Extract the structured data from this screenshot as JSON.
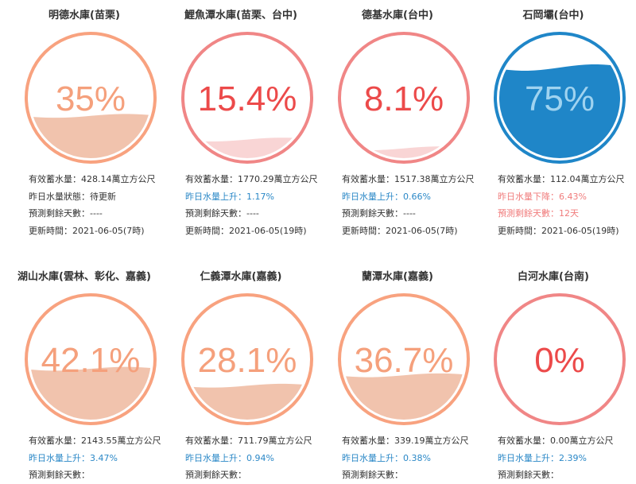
{
  "colors": {
    "orange_ring": "#f8a27f",
    "orange_text": "#f5a07c",
    "orange_water": "#f1c3ad",
    "red_ring": "#f08686",
    "red_text": "#ec4a4a",
    "red_water": "#f9d5d5",
    "blue_fill": "#1f86c8",
    "blue_ring": "#1f86c8",
    "blue_text": "#9fd3f0",
    "rise_text": "#2b88c7",
    "fall_text": "#f07c7c"
  },
  "reservoirs": [
    {
      "name": "明德水庫(苗栗)",
      "percent_label": "35%",
      "level": 0.35,
      "theme": "orange",
      "lines": [
        {
          "text": "有效蓄水量：428.14萬立方公尺",
          "kind": "normal"
        },
        {
          "text": "昨日水量狀態：待更新",
          "kind": "normal"
        },
        {
          "text": "預測剩餘天數：----",
          "kind": "normal"
        },
        {
          "text": "更新時間：2021-06-05(7時)",
          "kind": "normal"
        }
      ]
    },
    {
      "name": "鯉魚潭水庫(苗栗、台中)",
      "percent_label": "15.4%",
      "level": 0.154,
      "theme": "red",
      "lines": [
        {
          "text": "有效蓄水量：1770.29萬立方公尺",
          "kind": "normal"
        },
        {
          "text": "昨日水量上升：1.17%",
          "kind": "up"
        },
        {
          "text": "預測剩餘天數：----",
          "kind": "normal"
        },
        {
          "text": "更新時間：2021-06-05(19時)",
          "kind": "normal"
        }
      ]
    },
    {
      "name": "德基水庫(台中)",
      "percent_label": "8.1%",
      "level": 0.081,
      "theme": "red",
      "lines": [
        {
          "text": "有效蓄水量：1517.38萬立方公尺",
          "kind": "normal"
        },
        {
          "text": "昨日水量上升：0.66%",
          "kind": "up"
        },
        {
          "text": "預測剩餘天數：----",
          "kind": "normal"
        },
        {
          "text": "更新時間：2021-06-05(7時)",
          "kind": "normal"
        }
      ]
    },
    {
      "name": "石岡壩(台中)",
      "percent_label": "75%",
      "level": 0.75,
      "theme": "blue",
      "lines": [
        {
          "text": "有效蓄水量：112.04萬立方公尺",
          "kind": "normal"
        },
        {
          "text": "昨日水量下降：6.43%",
          "kind": "down"
        },
        {
          "text": "預測剩餘天數：12天",
          "kind": "down"
        },
        {
          "text": "更新時間：2021-06-05(19時)",
          "kind": "normal"
        }
      ]
    },
    {
      "name": "湖山水庫(雲林、彰化、嘉義)",
      "percent_label": "42.1%",
      "level": 0.421,
      "theme": "orange",
      "lines": [
        {
          "text": "有效蓄水量：2143.55萬立方公尺",
          "kind": "normal"
        },
        {
          "text": "昨日水量上升：3.47%",
          "kind": "up"
        },
        {
          "text": "預測剩餘天數：",
          "kind": "normal"
        }
      ]
    },
    {
      "name": "仁義潭水庫(嘉義)",
      "percent_label": "28.1%",
      "level": 0.281,
      "theme": "orange",
      "lines": [
        {
          "text": "有效蓄水量：711.79萬立方公尺",
          "kind": "normal"
        },
        {
          "text": "昨日水量上升：0.94%",
          "kind": "up"
        },
        {
          "text": "預測剩餘天數：",
          "kind": "normal"
        }
      ]
    },
    {
      "name": "蘭潭水庫(嘉義)",
      "percent_label": "36.7%",
      "level": 0.367,
      "theme": "orange",
      "lines": [
        {
          "text": "有效蓄水量：339.19萬立方公尺",
          "kind": "normal"
        },
        {
          "text": "昨日水量上升：0.38%",
          "kind": "up"
        },
        {
          "text": "預測剩餘天數：",
          "kind": "normal"
        }
      ]
    },
    {
      "name": "白河水庫(台南)",
      "percent_label": "0%",
      "level": 0,
      "theme": "red",
      "lines": [
        {
          "text": "有效蓄水量：0.00萬立方公尺",
          "kind": "normal"
        },
        {
          "text": "昨日水量上升：2.39%",
          "kind": "up"
        },
        {
          "text": "預測剩餘天數：",
          "kind": "normal"
        }
      ]
    }
  ]
}
